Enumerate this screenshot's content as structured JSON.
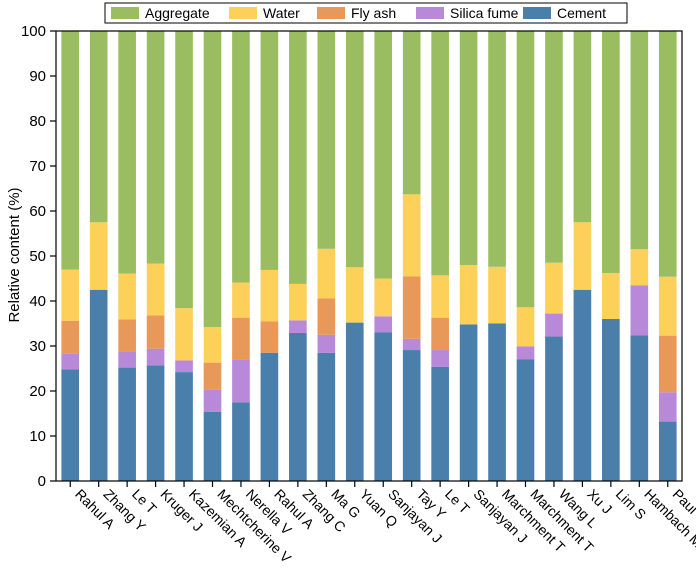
{
  "chart_data": {
    "type": "bar",
    "stacked": true,
    "ylabel": "Relative content (%)",
    "xlabel": "",
    "ylim": [
      0,
      100
    ],
    "yticks": [
      0,
      10,
      20,
      30,
      40,
      50,
      60,
      70,
      80,
      90,
      100
    ],
    "legend_position": "top",
    "categories": [
      "Rahul A",
      "Zhang Y",
      "Le T",
      "Kruger J",
      "Kazemian A",
      "Mechtcherine V",
      "Nerella V",
      "Rahul A",
      "Zhang C",
      "Ma G",
      "Yuan Q",
      "Sanjayan J",
      "Tay Y",
      "Le T",
      "Sanjayan J",
      "Marchment T",
      "Marchment T",
      "Wang L",
      "Xu J",
      "Lim S",
      "Hambach M",
      "Paul S"
    ],
    "series": [
      {
        "name": "Cement",
        "color": "#4a7eab",
        "values": [
          24.8,
          42.5,
          25.2,
          25.7,
          24.2,
          15.4,
          17.5,
          28.5,
          32.9,
          28.5,
          35.2,
          33.0,
          29.1,
          25.4,
          34.8,
          35.0,
          27.0,
          32.1,
          42.5,
          36.0,
          32.4,
          13.2
        ]
      },
      {
        "name": "Silica fume",
        "color": "#b889d8",
        "values": [
          3.5,
          0,
          3.6,
          3.7,
          2.6,
          4.9,
          9.4,
          0,
          2.8,
          4.0,
          0,
          3.6,
          2.5,
          3.7,
          0,
          0,
          2.9,
          5.1,
          0,
          0,
          11.1,
          6.5
        ]
      },
      {
        "name": "Fly ash",
        "color": "#e89858",
        "values": [
          7.3,
          0,
          7.1,
          7.4,
          0,
          6.0,
          9.4,
          7.0,
          0,
          8.1,
          0,
          0,
          13.9,
          7.2,
          0,
          0,
          0,
          0,
          0,
          0,
          0,
          12.6
        ]
      },
      {
        "name": "Water",
        "color": "#fdd05a",
        "values": [
          11.4,
          15.0,
          10.2,
          11.5,
          11.6,
          7.9,
          7.8,
          11.4,
          8.1,
          11.0,
          12.3,
          8.4,
          18.2,
          9.4,
          13.2,
          12.6,
          8.7,
          11.3,
          15.0,
          10.2,
          8.0,
          13.1
        ]
      },
      {
        "name": "Aggregate",
        "color": "#9bbd62",
        "values": [
          53.0,
          42.5,
          53.9,
          51.7,
          61.6,
          65.8,
          55.9,
          53.1,
          56.2,
          48.4,
          52.5,
          55.0,
          36.3,
          54.3,
          52.0,
          52.4,
          61.4,
          51.5,
          42.5,
          53.8,
          48.5,
          54.6
        ]
      }
    ],
    "legend_order": [
      "Aggregate",
      "Water",
      "Fly ash",
      "Silica fume",
      "Cement"
    ]
  }
}
